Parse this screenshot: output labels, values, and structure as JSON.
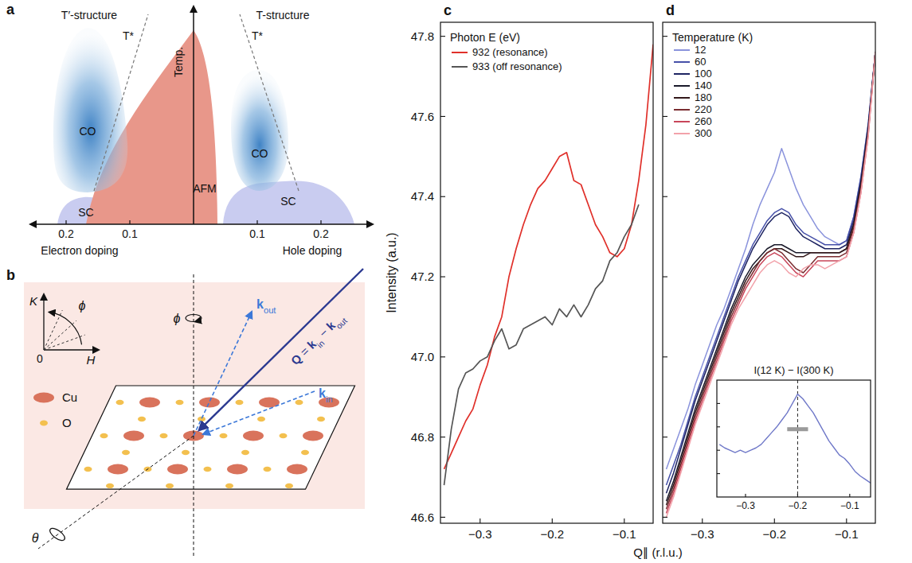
{
  "diagram_a": {
    "panel": "a",
    "y_label": "Temp.",
    "ticks": [
      {
        "value": -0.2,
        "label": "0.2"
      },
      {
        "value": -0.1,
        "label": "0.1"
      },
      {
        "value": 0.1,
        "label": "0.1"
      },
      {
        "value": 0.2,
        "label": "0.2"
      }
    ],
    "left": {
      "structure": "T′-structure",
      "t_star": "T*",
      "regions": [
        "CO",
        "SC"
      ],
      "axis_label": "Electron doping"
    },
    "right": {
      "structure": "T-structure",
      "t_star": "T*",
      "regions": [
        "CO",
        "SC"
      ],
      "axis_label": "Hole doping"
    },
    "center_region": "AFM"
  },
  "diagram_b": {
    "panel": "b",
    "reciprocal_axes": {
      "vertical": "K",
      "horizontal": "H",
      "origin": "0",
      "angle": "ϕ"
    },
    "rotations": {
      "phi": "ϕ",
      "theta": "θ"
    },
    "atoms": [
      {
        "label": "Cu",
        "color": "#d9735c"
      },
      {
        "label": "O",
        "color": "#f3c04f"
      }
    ],
    "k_out": [
      {
        "text": "k",
        "sub": "out"
      }
    ],
    "k_in": [
      {
        "text": "k",
        "sub": "in"
      }
    ],
    "q": [
      {
        "text": "Q"
      },
      {
        "text": " = "
      },
      {
        "text": "k",
        "sub": "in"
      },
      {
        "text": " − "
      },
      {
        "text": "k",
        "sub": "out"
      }
    ]
  },
  "chart_data": [
    {
      "type": "line",
      "panel": "c",
      "x_label": "Q∥ (r.l.u.)",
      "y_label": "Intensity (a.u.)",
      "legend_title": "Photon E (eV)",
      "legend": "upper left",
      "x": [
        -0.35,
        -0.34,
        -0.33,
        -0.32,
        -0.31,
        -0.3,
        -0.29,
        -0.28,
        -0.27,
        -0.26,
        -0.25,
        -0.24,
        -0.23,
        -0.22,
        -0.21,
        -0.2,
        -0.19,
        -0.18,
        -0.17,
        -0.16,
        -0.15,
        -0.14,
        -0.13,
        -0.12,
        -0.11,
        -0.1,
        -0.09,
        -0.08,
        -0.07,
        -0.06
      ],
      "xlim": [
        -0.355,
        -0.06
      ],
      "ylim": [
        46.585,
        47.835
      ],
      "xticks": [
        {
          "value": -0.3,
          "label": "−0.3"
        },
        {
          "value": -0.2,
          "label": "−0.2"
        },
        {
          "value": -0.1,
          "label": "−0.1"
        }
      ],
      "yticks": [
        46.6,
        46.8,
        {
          "value": 47,
          "label": "47.0"
        },
        47.2,
        47.4,
        47.6,
        47.8
      ],
      "series": [
        {
          "name": "932 (resonance)",
          "color": "#e0302a",
          "values": [
            46.72,
            46.76,
            46.8,
            46.84,
            46.87,
            46.93,
            46.98,
            47.05,
            47.1,
            47.2,
            47.27,
            47.33,
            47.38,
            47.42,
            47.44,
            47.47,
            47.5,
            47.51,
            47.44,
            47.43,
            47.38,
            47.33,
            47.3,
            47.26,
            47.25,
            47.27,
            47.33,
            47.44,
            47.58,
            47.78
          ]
        },
        {
          "name": "933 (off resonance)",
          "color": "#555555",
          "values": [
            46.68,
            46.82,
            46.92,
            46.96,
            46.97,
            46.99,
            47.0,
            47.04,
            47.07,
            47.02,
            47.03,
            47.07,
            47.08,
            47.09,
            47.1,
            47.08,
            47.12,
            47.1,
            47.13,
            47.1,
            47.13,
            47.17,
            47.19,
            47.24,
            47.26,
            47.3,
            47.33,
            47.38,
            null,
            null
          ]
        }
      ]
    },
    {
      "type": "line",
      "panel": "d",
      "legend_title": "Temperature (K)",
      "legend": "upper left",
      "tick_labels": "x",
      "x": [
        -0.35,
        -0.34,
        -0.33,
        -0.32,
        -0.31,
        -0.3,
        -0.29,
        -0.28,
        -0.27,
        -0.26,
        -0.25,
        -0.24,
        -0.23,
        -0.22,
        -0.21,
        -0.2,
        -0.19,
        -0.18,
        -0.17,
        -0.16,
        -0.15,
        -0.14,
        -0.13,
        -0.12,
        -0.11,
        -0.1,
        -0.09,
        -0.08,
        -0.07,
        -0.06
      ],
      "xlim": [
        -0.355,
        -0.06
      ],
      "ylim": [
        46.585,
        47.835
      ],
      "xticks": [
        {
          "value": -0.3,
          "label": "−0.3"
        },
        {
          "value": -0.2,
          "label": "−0.2"
        },
        {
          "value": -0.1,
          "label": "−0.1"
        }
      ],
      "yticks": [
        46.6,
        46.8,
        47,
        47.2,
        47.4,
        47.6,
        47.8
      ],
      "series": [
        {
          "name": "12",
          "color": "#8a93dc",
          "values": [
            46.72,
            46.77,
            46.82,
            46.87,
            46.93,
            46.98,
            47.03,
            47.08,
            47.12,
            47.17,
            47.22,
            47.27,
            47.33,
            47.38,
            47.42,
            47.46,
            47.52,
            47.47,
            47.42,
            47.38,
            47.35,
            47.32,
            47.3,
            47.29,
            47.28,
            47.29,
            47.35,
            47.45,
            47.58,
            47.76
          ]
        },
        {
          "name": "60",
          "color": "#4650a8",
          "values": [
            46.68,
            46.73,
            46.78,
            46.84,
            46.9,
            46.95,
            47.0,
            47.05,
            47.1,
            47.15,
            47.2,
            47.24,
            47.28,
            47.31,
            47.34,
            47.36,
            47.37,
            47.36,
            47.33,
            47.31,
            47.3,
            47.29,
            47.28,
            47.28,
            47.28,
            47.29,
            47.35,
            47.45,
            47.58,
            47.76
          ]
        },
        {
          "name": "100",
          "color": "#1e2462",
          "values": [
            46.66,
            46.71,
            46.77,
            46.83,
            46.89,
            46.94,
            46.99,
            47.04,
            47.09,
            47.14,
            47.19,
            47.23,
            47.27,
            47.3,
            47.33,
            47.35,
            47.36,
            47.35,
            47.32,
            47.3,
            47.29,
            47.28,
            47.27,
            47.27,
            47.27,
            47.28,
            47.34,
            47.44,
            47.57,
            47.76
          ]
        },
        {
          "name": "140",
          "color": "#1a1a2a",
          "values": [
            46.64,
            46.69,
            46.75,
            46.81,
            46.87,
            46.92,
            46.97,
            47.02,
            47.07,
            47.12,
            47.16,
            47.2,
            47.23,
            47.25,
            47.27,
            47.28,
            47.28,
            47.27,
            47.26,
            47.26,
            47.26,
            47.26,
            47.26,
            47.26,
            47.26,
            47.27,
            47.33,
            47.43,
            47.57,
            47.76
          ]
        },
        {
          "name": "180",
          "color": "#33181a",
          "values": [
            46.63,
            46.68,
            46.74,
            46.8,
            46.86,
            46.91,
            46.96,
            47.01,
            47.06,
            47.11,
            47.15,
            47.19,
            47.22,
            47.24,
            47.26,
            47.27,
            47.27,
            47.26,
            47.25,
            47.25,
            47.26,
            47.26,
            47.26,
            47.26,
            47.26,
            47.27,
            47.33,
            47.43,
            47.56,
            47.76
          ]
        },
        {
          "name": "220",
          "color": "#7a2c30",
          "values": [
            46.62,
            46.67,
            46.73,
            46.79,
            46.85,
            46.9,
            46.95,
            47.0,
            47.05,
            47.1,
            47.14,
            47.18,
            47.21,
            47.24,
            47.26,
            47.27,
            47.26,
            47.24,
            47.22,
            47.21,
            47.23,
            47.25,
            47.25,
            47.25,
            47.25,
            47.26,
            47.32,
            47.42,
            47.56,
            47.76
          ]
        },
        {
          "name": "260",
          "color": "#c8465a",
          "values": [
            46.61,
            46.66,
            46.72,
            46.78,
            46.84,
            46.89,
            46.94,
            46.99,
            47.04,
            47.09,
            47.13,
            47.17,
            47.2,
            47.23,
            47.25,
            47.26,
            47.25,
            47.23,
            47.21,
            47.2,
            47.22,
            47.24,
            47.24,
            47.24,
            47.24,
            47.25,
            47.31,
            47.41,
            47.55,
            47.76
          ]
        },
        {
          "name": "300",
          "color": "#f2a2aa",
          "values": [
            46.6,
            46.65,
            46.71,
            46.77,
            46.83,
            46.88,
            46.93,
            46.98,
            47.03,
            47.08,
            47.12,
            47.15,
            47.18,
            47.21,
            47.23,
            47.24,
            47.23,
            47.21,
            47.2,
            47.22,
            47.23,
            47.23,
            47.22,
            47.23,
            47.24,
            47.25,
            47.31,
            47.41,
            47.55,
            47.76
          ]
        }
      ]
    },
    {
      "type": "line",
      "title": "I(12 K) − I(300 K)",
      "tick_labels": "x",
      "x": [
        -0.35,
        -0.34,
        -0.33,
        -0.32,
        -0.31,
        -0.3,
        -0.29,
        -0.28,
        -0.27,
        -0.26,
        -0.25,
        -0.24,
        -0.23,
        -0.22,
        -0.21,
        -0.2,
        -0.19,
        -0.18,
        -0.17,
        -0.16,
        -0.15,
        -0.14,
        -0.13,
        -0.12,
        -0.11,
        -0.1,
        -0.09,
        -0.08,
        -0.07,
        -0.06
      ],
      "xlim": [
        -0.355,
        -0.06
      ],
      "ylim": [
        0,
        1
      ],
      "xticks": [
        {
          "value": -0.3,
          "label": "−0.3"
        },
        {
          "value": -0.2,
          "label": "−0.2"
        },
        {
          "value": -0.1,
          "label": "−0.1"
        }
      ],
      "yticks": [
        0.2,
        0.4,
        0.6,
        0.8
      ],
      "reference_x": -0.2,
      "resolution_bar": {
        "x": [
          -0.22,
          -0.18
        ],
        "y": 0.58
      },
      "series": [
        {
          "color": "#6f78c8",
          "values": [
            0.45,
            0.42,
            0.4,
            0.38,
            0.4,
            0.38,
            0.4,
            0.42,
            0.45,
            0.5,
            0.55,
            0.6,
            0.66,
            0.72,
            0.8,
            0.88,
            0.84,
            0.78,
            0.72,
            0.64,
            0.56,
            0.48,
            0.42,
            0.36,
            0.33,
            0.28,
            0.22,
            0.18,
            0.15,
            0.12
          ]
        }
      ]
    }
  ]
}
